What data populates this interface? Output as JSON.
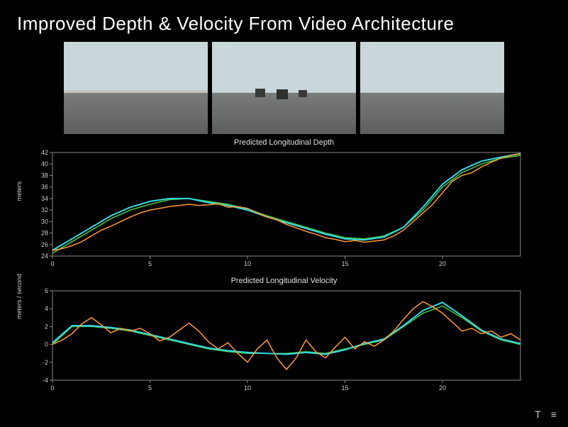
{
  "title": "Improved Depth & Velocity From Video Architecture",
  "videos": {
    "count": 3,
    "thumb_bg": "#b8c4c8"
  },
  "depth_chart": {
    "type": "line",
    "title": "Predicted Longitudinal Depth",
    "ylabel": "meters",
    "xlim": [
      0,
      24
    ],
    "ylim": [
      24,
      42
    ],
    "yticks": [
      24,
      26,
      28,
      30,
      32,
      34,
      36,
      38,
      40,
      42
    ],
    "xticks": [
      0,
      5,
      10,
      15,
      20
    ],
    "bg_color": "#000000",
    "border_color": "#888888",
    "grid_color": "#444444",
    "series": [
      {
        "name": "green",
        "color": "#44cc44",
        "width": 1.5,
        "x": [
          0,
          1,
          2,
          3,
          4,
          5,
          6,
          7,
          8,
          9,
          10,
          11,
          12,
          13,
          14,
          15,
          16,
          17,
          18,
          19,
          20,
          21,
          22,
          23,
          24
        ],
        "y": [
          24.5,
          26.5,
          28.5,
          30.5,
          32,
          33,
          33.8,
          34,
          33.5,
          33,
          32.2,
          31,
          30,
          29,
          28,
          27.2,
          27,
          27.5,
          29,
          32,
          36,
          38.5,
          40,
          41,
          41.5
        ]
      },
      {
        "name": "cyan",
        "color": "#33d9e6",
        "width": 2,
        "x": [
          0,
          1,
          2,
          3,
          4,
          5,
          6,
          7,
          8,
          9,
          10,
          11,
          12,
          13,
          14,
          15,
          16,
          17,
          18,
          19,
          20,
          21,
          22,
          23,
          24
        ],
        "y": [
          25,
          27,
          29,
          31,
          32.5,
          33.5,
          34,
          34,
          33.3,
          32.8,
          32,
          30.8,
          29.8,
          28.8,
          27.8,
          27,
          26.8,
          27.3,
          29,
          32.5,
          36.5,
          39,
          40.5,
          41.2,
          41.8
        ]
      },
      {
        "name": "orange",
        "color": "#ff9933",
        "width": 1.5,
        "x": [
          0,
          0.5,
          1,
          1.5,
          2,
          2.5,
          3,
          3.5,
          4,
          4.5,
          5,
          5.5,
          6,
          6.5,
          7,
          7.5,
          8,
          8.5,
          9,
          9.5,
          10,
          10.5,
          11,
          11.5,
          12,
          12.5,
          13,
          13.5,
          14,
          14.5,
          15,
          15.5,
          16,
          16.5,
          17,
          17.5,
          18,
          18.5,
          19,
          19.5,
          20,
          20.5,
          21,
          21.5,
          22,
          22.5,
          23,
          23.5,
          24
        ],
        "y": [
          25,
          25.3,
          25.8,
          26.5,
          27.5,
          28.5,
          29.2,
          30,
          30.8,
          31.5,
          32,
          32.3,
          32.6,
          32.8,
          33,
          32.8,
          32.9,
          33.1,
          32.5,
          32.6,
          32.3,
          31.5,
          30.8,
          30.3,
          29.5,
          28.9,
          28.3,
          27.8,
          27.2,
          26.9,
          26.5,
          26.7,
          26.4,
          26.6,
          26.8,
          27.5,
          28.5,
          30,
          31.5,
          33,
          35,
          37,
          38,
          38.5,
          39.5,
          40.3,
          41,
          41.5,
          41.8
        ]
      }
    ]
  },
  "velocity_chart": {
    "type": "line",
    "title": "Predicted Longitudinal Velocity",
    "ylabel": "meters / second",
    "xlim": [
      0,
      24
    ],
    "ylim": [
      -4,
      6
    ],
    "yticks": [
      -4,
      -2,
      0,
      2,
      4,
      6
    ],
    "xticks": [
      0,
      5,
      10,
      15,
      20
    ],
    "bg_color": "#000000",
    "border_color": "#888888",
    "grid_color": "#444444",
    "series": [
      {
        "name": "green",
        "color": "#44cc44",
        "width": 1.5,
        "x": [
          0,
          1,
          2,
          3,
          4,
          5,
          6,
          7,
          8,
          9,
          10,
          11,
          12,
          13,
          14,
          15,
          16,
          17,
          18,
          19,
          20,
          21,
          22,
          23,
          24
        ],
        "y": [
          0,
          2,
          2,
          1.8,
          1.5,
          1,
          0.5,
          0,
          -0.5,
          -0.8,
          -1,
          -1,
          -1,
          -0.8,
          -1,
          -0.5,
          0,
          0.5,
          2,
          3.5,
          4.3,
          3,
          1.5,
          0.5,
          0
        ]
      },
      {
        "name": "cyan",
        "color": "#33d9e6",
        "width": 2,
        "x": [
          0,
          1,
          2,
          3,
          4,
          5,
          6,
          7,
          8,
          9,
          10,
          11,
          12,
          13,
          14,
          15,
          16,
          17,
          18,
          19,
          20,
          21,
          22,
          23,
          24
        ],
        "y": [
          0.2,
          2.1,
          2.1,
          1.9,
          1.6,
          1.1,
          0.6,
          0.1,
          -0.4,
          -0.7,
          -0.9,
          -1,
          -1.1,
          -0.9,
          -1.1,
          -0.6,
          0.1,
          0.6,
          2.1,
          3.8,
          4.7,
          3.2,
          1.6,
          0.6,
          0.1
        ]
      },
      {
        "name": "orange",
        "color": "#ff9933",
        "width": 1.5,
        "x": [
          0,
          0.5,
          1,
          1.5,
          2,
          2.5,
          3,
          3.5,
          4,
          4.5,
          5,
          5.5,
          6,
          6.5,
          7,
          7.5,
          8,
          8.5,
          9,
          9.5,
          10,
          10.5,
          11,
          11.5,
          12,
          12.5,
          13,
          13.5,
          14,
          14.5,
          15,
          15.5,
          16,
          16.5,
          17,
          17.5,
          18,
          18.5,
          19,
          19.5,
          20,
          20.5,
          21,
          21.5,
          22,
          22.5,
          23,
          23.5,
          24
        ],
        "y": [
          0,
          0.5,
          1.2,
          2.3,
          3,
          2.2,
          1.3,
          1.8,
          1.5,
          1.8,
          1.2,
          0.4,
          0.8,
          1.6,
          2.4,
          1.5,
          0.3,
          -0.5,
          0.2,
          -1,
          -2,
          -0.5,
          0.5,
          -1.5,
          -2.8,
          -1.5,
          0.5,
          -0.8,
          -1.5,
          -0.3,
          0.8,
          -0.5,
          0.3,
          -0.2,
          0.5,
          1.5,
          2.8,
          4,
          4.8,
          4.2,
          3.5,
          2.5,
          1.5,
          1.8,
          1.2,
          1.5,
          0.8,
          1.2,
          0.5
        ]
      }
    ]
  },
  "footer": {
    "icon1": "T",
    "icon2": "≡"
  }
}
